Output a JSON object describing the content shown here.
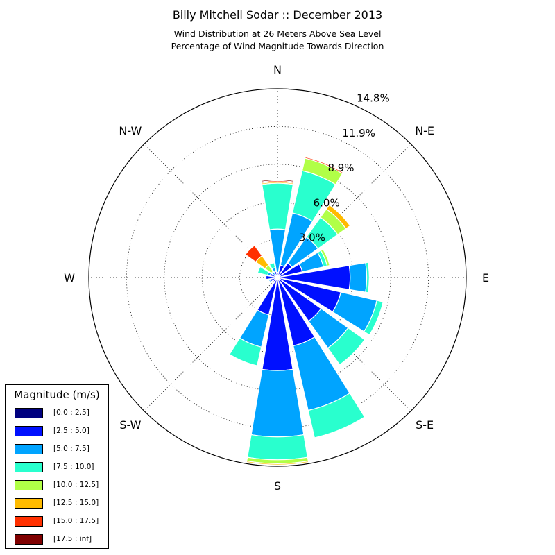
{
  "header": {
    "title": "Billy Mitchell Sodar :: December 2013",
    "subtitle_1": "Wind Distribution at 26 Meters Above Sea Level",
    "subtitle_2": "Percentage of Wind Magnitude Towards Direction"
  },
  "chart_data": {
    "type": "windrose",
    "title": "Billy Mitchell Sodar :: December 2013",
    "direction_labels": [
      "N",
      "N-E",
      "E",
      "S-E",
      "S",
      "S-W",
      "W",
      "N-W"
    ],
    "radial_tick_labels": [
      "3.0%",
      "6.0%",
      "8.9%",
      "11.9%",
      "14.8%"
    ],
    "radial_ticks": [
      2.96,
      5.92,
      8.88,
      11.84,
      14.8
    ],
    "radial_max": 14.8,
    "bins": [
      {
        "label": "[0.0 : 2.5]",
        "color": "#00007f"
      },
      {
        "label": "[2.5 : 5.0]",
        "color": "#0010ff"
      },
      {
        "label": "[5.0 : 7.5]",
        "color": "#00a4ff"
      },
      {
        "label": "[7.5 : 10.0]",
        "color": "#29ffce"
      },
      {
        "label": "[10.0 : 12.5]",
        "color": "#b1ff47"
      },
      {
        "label": "[12.5 : 15.0]",
        "color": "#ffbb00"
      },
      {
        "label": "[15.0 : 17.5]",
        "color": "#ff3000"
      },
      {
        "label": "[17.5 : inf]",
        "color": "#7f0000"
      }
    ],
    "directions_deg": [
      0,
      22.5,
      45,
      67.5,
      90,
      112.5,
      135,
      157.5,
      180,
      202.5,
      225,
      247.5,
      270,
      292.5,
      315,
      337.5
    ],
    "cumulative": [
      [
        0.0,
        0.4,
        3.8,
        7.4,
        7.4,
        7.5,
        7.6,
        7.7
      ],
      [
        0.0,
        1.0,
        5.2,
        8.6,
        9.6,
        9.6,
        9.7,
        9.7
      ],
      [
        0.0,
        1.4,
        3.9,
        5.8,
        6.6,
        7.0,
        7.0,
        7.0
      ],
      [
        0.0,
        2.0,
        3.7,
        4.0,
        4.2,
        4.2,
        4.2,
        4.2
      ],
      [
        0.0,
        5.7,
        7.0,
        7.2,
        7.2,
        7.2,
        7.2,
        7.2
      ],
      [
        0.0,
        5.1,
        8.0,
        8.5,
        8.5,
        8.5,
        8.5,
        8.5
      ],
      [
        0.0,
        4.2,
        6.8,
        8.4,
        8.4,
        8.4,
        8.4,
        8.4
      ],
      [
        0.0,
        5.5,
        10.7,
        12.9,
        12.9,
        12.9,
        12.9,
        12.9
      ],
      [
        0.0,
        7.3,
        12.5,
        14.3,
        14.6,
        14.7,
        14.7,
        14.7
      ],
      [
        0.0,
        3.0,
        5.6,
        7.1,
        7.1,
        7.1,
        7.1,
        7.1
      ],
      [
        0.0,
        0.4,
        0.4,
        0.4,
        0.4,
        0.4,
        0.4,
        0.4
      ],
      [
        0.0,
        0.6,
        0.7,
        0.7,
        0.7,
        0.7,
        0.7,
        0.7
      ],
      [
        0.0,
        0.9,
        0.9,
        0.9,
        0.9,
        0.9,
        0.9,
        0.9
      ],
      [
        0.0,
        0.6,
        0.8,
        1.6,
        1.6,
        1.6,
        1.6,
        1.6
      ],
      [
        0.0,
        0.3,
        0.5,
        0.6,
        1.2,
        2.1,
        3.1,
        3.1
      ],
      [
        0.0,
        0.5,
        0.8,
        1.2,
        1.2,
        1.2,
        1.2,
        1.2
      ]
    ]
  },
  "legend": {
    "title": "Magnitude (m/s)",
    "items": [
      {
        "label": "[0.0 : 2.5]",
        "color": "#00007f"
      },
      {
        "label": "[2.5 : 5.0]",
        "color": "#0010ff"
      },
      {
        "label": "[5.0 : 7.5]",
        "color": "#00a4ff"
      },
      {
        "label": "[7.5 : 10.0]",
        "color": "#29ffce"
      },
      {
        "label": "[10.0 : 12.5]",
        "color": "#b1ff47"
      },
      {
        "label": "[12.5 : 15.0]",
        "color": "#ffbb00"
      },
      {
        "label": "[15.0 : 17.5]",
        "color": "#ff3000"
      },
      {
        "label": "[17.5 : inf]",
        "color": "#7f0000"
      }
    ]
  }
}
